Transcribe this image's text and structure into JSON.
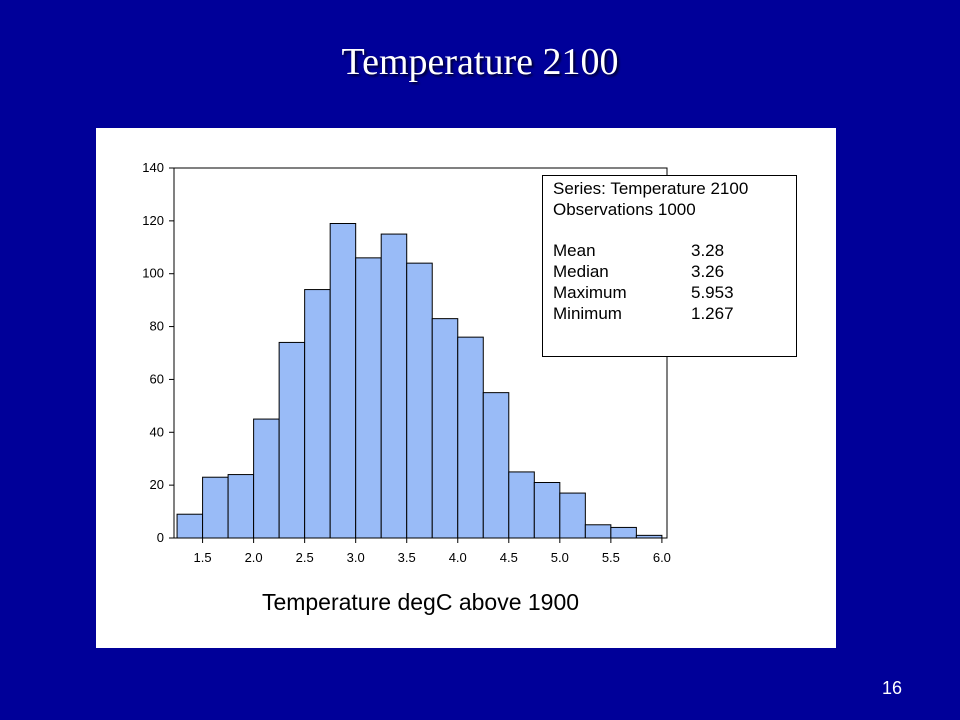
{
  "slide": {
    "title": "Temperature 2100",
    "page_number": "16"
  },
  "colors": {
    "background": "#000099",
    "bar_fill": "#99bbf7",
    "bar_stroke": "#000000"
  },
  "stats_box": {
    "series_line": "Series: Temperature 2100",
    "observations_line": "Observations 1000",
    "rows": [
      {
        "label": "Mean",
        "value": "3.28"
      },
      {
        "label": "Median",
        "value": "3.26"
      },
      {
        "label": "Maximum",
        "value": "5.953"
      },
      {
        "label": "Minimum",
        "value": "1.267"
      }
    ]
  },
  "chart_data": {
    "type": "bar",
    "title": "",
    "xlabel": "Temperature degC above 1900",
    "ylabel": "",
    "bin_width": 0.25,
    "bin_starts": [
      1.25,
      1.5,
      1.75,
      2.0,
      2.25,
      2.5,
      2.75,
      3.0,
      3.25,
      3.5,
      3.75,
      4.0,
      4.25,
      4.5,
      4.75,
      5.0,
      5.25,
      5.5,
      5.75
    ],
    "values": [
      9,
      23,
      24,
      45,
      74,
      94,
      119,
      106,
      115,
      104,
      83,
      76,
      55,
      25,
      21,
      17,
      5,
      4,
      1
    ],
    "xlim": [
      1.22,
      6.05
    ],
    "ylim": [
      0,
      140
    ],
    "x_ticks": [
      "1.5",
      "2.0",
      "2.5",
      "3.0",
      "3.5",
      "4.0",
      "4.5",
      "5.0",
      "5.5",
      "6.0"
    ],
    "y_ticks": [
      "0",
      "20",
      "40",
      "60",
      "80",
      "100",
      "120",
      "140"
    ],
    "grid": false,
    "legend": "none"
  }
}
